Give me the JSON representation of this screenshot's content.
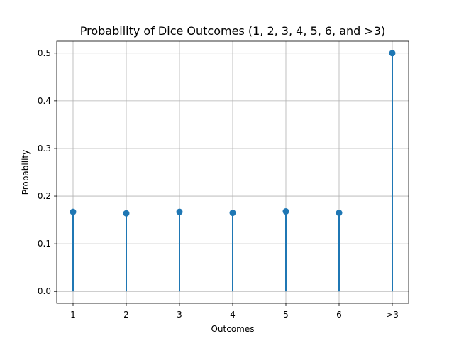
{
  "chart_data": {
    "type": "stem",
    "title": "Probability of Dice Outcomes (1, 2, 3, 4, 5, 6, and >3)",
    "xlabel": "Outcomes",
    "ylabel": "Probability",
    "categories": [
      "1",
      "2",
      "3",
      "4",
      "5",
      "6",
      ">3"
    ],
    "values": [
      0.167,
      0.164,
      0.167,
      0.165,
      0.168,
      0.165,
      0.5
    ],
    "ylim": [
      -0.025,
      0.525
    ],
    "yticks": [
      0.0,
      0.1,
      0.2,
      0.3,
      0.4,
      0.5
    ],
    "ytick_labels": [
      "0.0",
      "0.1",
      "0.2",
      "0.3",
      "0.4",
      "0.5"
    ],
    "grid": true,
    "color": "#1f77b4"
  }
}
